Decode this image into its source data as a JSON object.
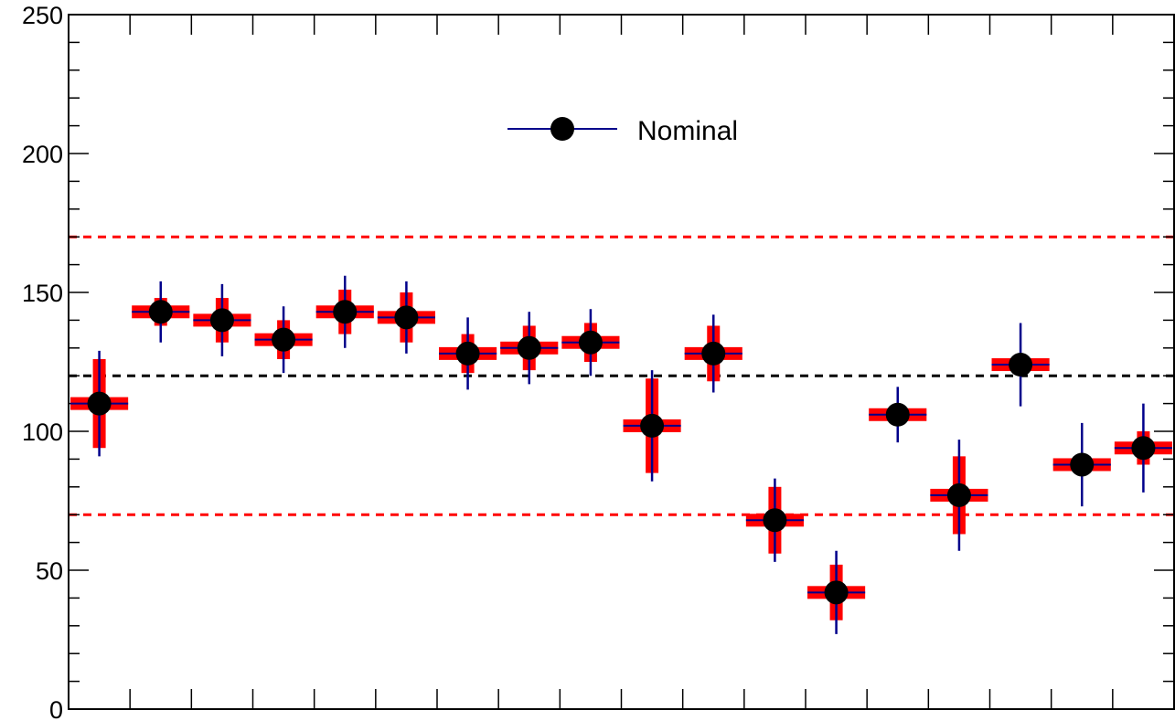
{
  "chart_data": {
    "type": "scatter",
    "ylim": [
      0,
      250
    ],
    "y_ticks": [
      "0",
      "50",
      "100",
      "150",
      "200",
      "250"
    ],
    "xlim": [
      0,
      18
    ],
    "legend": {
      "label": "Nominal",
      "placement": "top-center"
    },
    "reference_lines": [
      {
        "y": 170,
        "color": "#ff0000",
        "style": "dashed"
      },
      {
        "y": 120,
        "color": "#000000",
        "style": "dashed"
      },
      {
        "y": 70,
        "color": "#ff0000",
        "style": "dashed"
      }
    ],
    "series": [
      {
        "points": [
          {
            "x": 0.5,
            "y": 110,
            "sys_err": 16,
            "stat_err": 19
          },
          {
            "x": 1.5,
            "y": 143,
            "sys_err": 5,
            "stat_err": 11
          },
          {
            "x": 2.5,
            "y": 140,
            "sys_err": 8,
            "stat_err": 13
          },
          {
            "x": 3.5,
            "y": 133,
            "sys_err": 7,
            "stat_err": 12
          },
          {
            "x": 4.5,
            "y": 143,
            "sys_err": 8,
            "stat_err": 13
          },
          {
            "x": 5.5,
            "y": 141,
            "sys_err": 9,
            "stat_err": 13
          },
          {
            "x": 6.5,
            "y": 128,
            "sys_err": 7,
            "stat_err": 13
          },
          {
            "x": 7.5,
            "y": 130,
            "sys_err": 8,
            "stat_err": 13
          },
          {
            "x": 8.5,
            "y": 132,
            "sys_err": 7,
            "stat_err": 12
          },
          {
            "x": 9.5,
            "y": 102,
            "sys_err": 17,
            "stat_err": 20
          },
          {
            "x": 10.5,
            "y": 128,
            "sys_err": 10,
            "stat_err": 14
          },
          {
            "x": 11.5,
            "y": 68,
            "sys_err": 12,
            "stat_err": 15
          },
          {
            "x": 12.5,
            "y": 42,
            "sys_err": 10,
            "stat_err": 15
          },
          {
            "x": 13.5,
            "y": 106,
            "sys_err": 2,
            "stat_err": 10
          },
          {
            "x": 14.5,
            "y": 77,
            "sys_err": 14,
            "stat_err": 20
          },
          {
            "x": 15.5,
            "y": 124,
            "sys_err": 2,
            "stat_err": 15
          },
          {
            "x": 16.5,
            "y": 88,
            "sys_err": 2,
            "stat_err": 15
          },
          {
            "x": 17.5,
            "y": 94,
            "sys_err": 6,
            "stat_err": 16
          }
        ]
      }
    ],
    "colors": {
      "marker": "#000000",
      "stat_bar": "#00008b",
      "sys_band": "#ff0000",
      "axis": "#000000"
    }
  }
}
